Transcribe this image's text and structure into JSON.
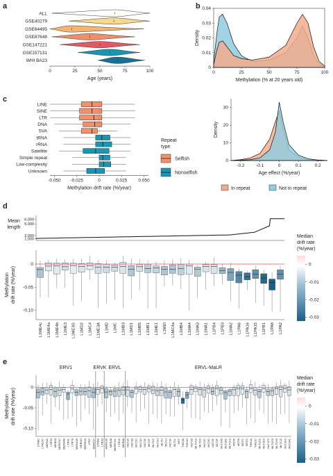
{
  "panel_labels": [
    "a",
    "b",
    "c",
    "d",
    "e"
  ],
  "chart_data": [
    {
      "panel": "a",
      "type": "violin",
      "categories": [
        "ALL",
        "GSE40279",
        "GSE64495",
        "GSE87648",
        "GSE147221",
        "GSE157131",
        "WHI BA23"
      ],
      "colors": [
        "#ffffff",
        "#f7d98c",
        "#f4b572",
        "#ef8f6a",
        "#e05a66",
        "#1a96b3",
        "#1a6f97"
      ],
      "xlabel": "Age (years)",
      "xlim": [
        0,
        100
      ],
      "xticks": [
        "0",
        "25",
        "50",
        "75",
        "100"
      ],
      "ranges": [
        [
          2,
          100
        ],
        [
          19,
          100
        ],
        [
          0,
          94
        ],
        [
          2,
          85
        ],
        [
          10,
          90
        ],
        [
          28,
          90
        ],
        [
          48,
          95
        ]
      ],
      "peaks": [
        65,
        64,
        22,
        40,
        50,
        60,
        68
      ]
    },
    {
      "panel": "b",
      "type": "area",
      "xlabel": "Methylation (% at 20 years old)",
      "ylabel": "Density",
      "xlim": [
        0,
        100
      ],
      "ylim": [
        0,
        0.04
      ],
      "xticks": [
        "0",
        "25",
        "50",
        "75",
        "100"
      ],
      "yticks": [
        "0",
        "0.01",
        "0.02",
        "0.03",
        "0.04"
      ],
      "series": [
        {
          "name": "Not in repeat",
          "color": "#8fcde0",
          "x": [
            0,
            3,
            5,
            8,
            12,
            18,
            25,
            35,
            50,
            65,
            75,
            80,
            85,
            90,
            95,
            100
          ],
          "y": [
            0.004,
            0.024,
            0.034,
            0.036,
            0.03,
            0.016,
            0.008,
            0.004,
            0.005,
            0.01,
            0.02,
            0.028,
            0.02,
            0.008,
            0.002,
            0.0005
          ]
        },
        {
          "name": "In repeat",
          "color": "#f2ab8c",
          "x": [
            0,
            3,
            5,
            8,
            12,
            18,
            25,
            35,
            50,
            65,
            75,
            80,
            85,
            90,
            95,
            100
          ],
          "y": [
            0.002,
            0.012,
            0.017,
            0.018,
            0.014,
            0.008,
            0.006,
            0.005,
            0.007,
            0.015,
            0.03,
            0.036,
            0.03,
            0.014,
            0.004,
            0.001
          ]
        }
      ]
    },
    {
      "panel": "c",
      "type": "box",
      "categories": [
        "LINE",
        "SINE",
        "LTR",
        "DNA",
        "SVA",
        "tRNA",
        "rRNA",
        "Satellite",
        "Simple repeat",
        "Low-complexity",
        "Unknown"
      ],
      "groups": [
        "Selfish",
        "Selfish",
        "Selfish",
        "Selfish",
        "Selfish",
        "Nonselfish",
        "Nonselfish",
        "Nonselfish",
        "Nonselfish",
        "Nonselfish",
        "Nonselfish"
      ],
      "boxes": [
        [
          -0.055,
          -0.02,
          -0.008,
          0.003,
          0.04
        ],
        [
          -0.055,
          -0.022,
          -0.008,
          0.003,
          0.04
        ],
        [
          -0.055,
          -0.022,
          -0.006,
          0.003,
          0.04
        ],
        [
          -0.05,
          -0.018,
          -0.005,
          0.003,
          0.035
        ],
        [
          -0.045,
          -0.02,
          -0.008,
          -0.002,
          0.02
        ],
        [
          -0.04,
          -0.004,
          0.003,
          0.012,
          0.035
        ],
        [
          -0.04,
          -0.004,
          0.004,
          0.014,
          0.035
        ],
        [
          -0.045,
          -0.018,
          -0.004,
          0.011,
          0.035
        ],
        [
          -0.03,
          0.0,
          0.004,
          0.012,
          0.03
        ],
        [
          -0.03,
          0.0,
          0.005,
          0.013,
          0.03
        ],
        [
          -0.04,
          -0.014,
          -0.004,
          0.006,
          0.03
        ]
      ],
      "xlabel": "Methylation drift rate (%/year)",
      "xlim": [
        -0.055,
        0.055
      ],
      "xticks": [
        "-0.050",
        "-0.025",
        "0",
        "0.025",
        "0.050"
      ],
      "legend_title": "Repeat type",
      "legend": [
        {
          "name": "Selfish",
          "color": "#f2906d"
        },
        {
          "name": "Nonselfish",
          "color": "#1a96b3"
        }
      ]
    },
    {
      "panel": "c-right",
      "type": "area",
      "xlabel": "Age effect (%/year)",
      "ylabel": "Density",
      "xlim": [
        -0.25,
        0.25
      ],
      "ylim": [
        0,
        35
      ],
      "xticks": [
        "-0.2",
        "-0.1",
        "0",
        "0.1",
        "0.2"
      ],
      "yticks": [
        "0",
        "10",
        "20",
        "30"
      ],
      "series": [
        {
          "name": "In repeat",
          "color": "#f2ab8c",
          "x": [
            -0.25,
            -0.2,
            -0.15,
            -0.1,
            -0.05,
            -0.02,
            0,
            0.02,
            0.05,
            0.1,
            0.15,
            0.2,
            0.25
          ],
          "y": [
            0,
            0.5,
            1.5,
            4,
            12,
            22,
            28,
            18,
            6,
            2,
            0.6,
            0.2,
            0
          ]
        },
        {
          "name": "Not in repeat",
          "color": "#8fcde0",
          "x": [
            -0.25,
            -0.2,
            -0.15,
            -0.1,
            -0.05,
            -0.02,
            0,
            0.02,
            0.05,
            0.1,
            0.15,
            0.2,
            0.25
          ],
          "y": [
            0,
            0.2,
            0.5,
            1.5,
            6,
            16,
            33,
            22,
            9,
            3,
            1,
            0.3,
            0
          ]
        }
      ]
    },
    {
      "panel": "d",
      "type": "line+box",
      "top_ylabel": "Mean length",
      "top_yticks": [
        "1,000",
        "3,000",
        "5,000",
        "6,000"
      ],
      "categories": [
        "L1ME4c",
        "L1ME4a",
        "L1ME4b",
        "L1ME3",
        "L1ME3G",
        "L1MD2",
        "L1MC4",
        "L1ME3A",
        "L1MD",
        "L1MC",
        "L1MB3",
        "L1MD1",
        "L1MB5",
        "L1MB1",
        "L1ME1",
        "L1MEf",
        "L1MC4a",
        "L1MB4",
        "L1MA4",
        "L1MA3",
        "L1MA1",
        "L1PB4",
        "L1PB3",
        "L1MA2",
        "L1PA6",
        "L1PA16",
        "L1PA15",
        "L1PB1",
        "L1PA8",
        "L1PA2"
      ],
      "ylabel": "Methylation drift rate (%/year)",
      "ylim": [
        -0.12,
        0.03
      ],
      "yticks": [
        "0",
        "-0.05",
        "-0.10"
      ],
      "colorbar_title": "Median drift rate (%/year)",
      "colorbar_ticks": [
        "0",
        "-0.01",
        "-0.02",
        "-0.03"
      ]
    },
    {
      "panel": "e",
      "type": "box",
      "groups": [
        "ERV1",
        "ERVK",
        "ERVL",
        "ERVL-MaLR"
      ],
      "ylabel": "Methylation drift rate (%/year)",
      "ylim": [
        -0.12,
        0.03
      ],
      "yticks": [
        "0",
        "-0.05",
        "-0.10"
      ],
      "colorbar_title": "Median drift rate (%/year)",
      "colorbar_ticks": [
        "0",
        "-0.01",
        "-0.02",
        "-0.03"
      ],
      "categories": [
        "LTR8C",
        "LTR12C",
        "MER4A",
        "LTR33",
        "MER50",
        "MER21C",
        "MER34B",
        "LTR41",
        "LTR78",
        "MER41B",
        "HERVH",
        "MER52A",
        "LTR7",
        "HERV17",
        "LTR9B",
        "LTR43",
        "HERV30",
        "MER48",
        "MER57A1",
        "LTR16",
        "MER88",
        "MLT1A",
        "MLT1B",
        "MLT1C",
        "MLT1D",
        "MLT1E",
        "MLT1F",
        "MLT1G",
        "MLT1H",
        "MLT1I",
        "MLT1J",
        "MLT1K",
        "MLT1L",
        "MST",
        "THE1B",
        "THE1D",
        "MLT2B",
        "MLT1N2",
        "MLT1O",
        "MLT2C",
        "MLT2D",
        "MLT2E",
        "MLT2F",
        "MLT1A0",
        "MLT1B1",
        "MLT1C2",
        "MSTA",
        "MSTB",
        "MSTC",
        "MSTD",
        "THE1A",
        "THE1C",
        "MLT1D1",
        "MLT1E2",
        "MLT1F2",
        "MLT1G3",
        "MLT1H2",
        "MLT1J2",
        "MLT1K2",
        "MLT2A1"
      ]
    }
  ]
}
